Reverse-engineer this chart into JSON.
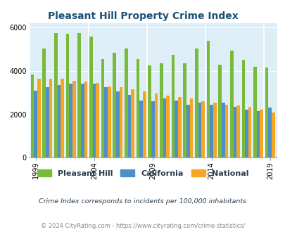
{
  "title": "Pleasant Hill Property Crime Index",
  "years_data": [
    1999,
    2000,
    2001,
    2002,
    2003,
    2004,
    2005,
    2006,
    2007,
    2008,
    2009,
    2010,
    2011,
    2012,
    2013,
    2014,
    2015,
    2016,
    2017,
    2018,
    2019
  ],
  "ph_data": [
    3850,
    5050,
    5750,
    5700,
    5750,
    5600,
    4550,
    4850,
    5050,
    4550,
    4250,
    4350,
    4750,
    4350,
    5050,
    5400,
    4300,
    4950,
    4500,
    4200,
    4150
  ],
  "ca_data": [
    3100,
    3250,
    3350,
    3400,
    3400,
    3400,
    3250,
    3050,
    2900,
    2650,
    2600,
    2750,
    2650,
    2450,
    2550,
    2450,
    2550,
    2350,
    2200,
    2150,
    2300
  ],
  "na_data": [
    3650,
    3650,
    3650,
    3550,
    3500,
    3450,
    3300,
    3250,
    3150,
    3050,
    2950,
    2850,
    2800,
    2750,
    2600,
    2550,
    2450,
    2400,
    2350,
    2200,
    2100
  ],
  "colors": {
    "pleasant_hill": "#7aba3a",
    "california": "#4e8fcb",
    "national": "#f5a623"
  },
  "background_color": "#ddeef6",
  "ylim": [
    0,
    6200
  ],
  "yticks": [
    0,
    2000,
    4000,
    6000
  ],
  "xtick_years": [
    1999,
    2004,
    2009,
    2014,
    2019
  ],
  "subtitle": "Crime Index corresponds to incidents per 100,000 inhabitants",
  "footer": "© 2024 CityRating.com - https://www.cityrating.com/crime-statistics/",
  "title_color": "#1a5276",
  "subtitle_color": "#2c3e50",
  "footer_color": "#7f8c8d",
  "bar_width": 0.28
}
